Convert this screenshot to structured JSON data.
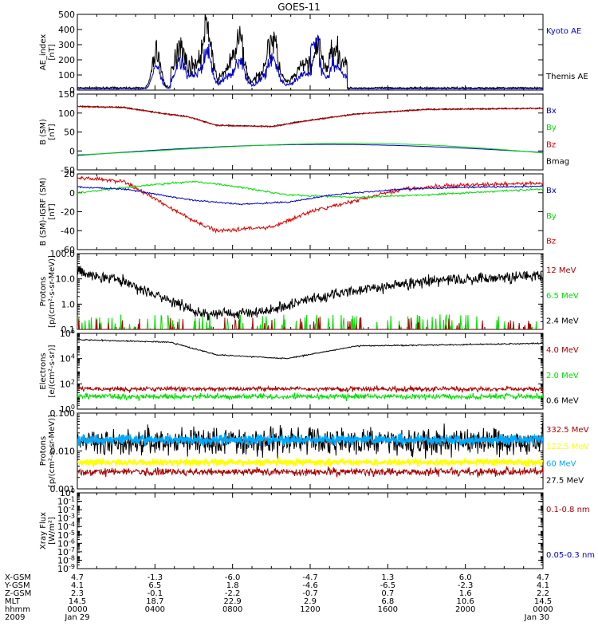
{
  "title": "GOES-11",
  "colors": {
    "black": "#000000",
    "blue": "#0000cc",
    "green": "#00dd00",
    "red": "#dd0000",
    "darkred": "#aa0000",
    "yellow": "#ffff00",
    "cyan": "#00aaff"
  },
  "chart_data": [
    {
      "type": "line",
      "panel": "ae",
      "ylabel": [
        "AE_index",
        "[nT]"
      ],
      "ylim": [
        0,
        500
      ],
      "yticks": [
        "0",
        "100",
        "200",
        "300",
        "400",
        "500"
      ],
      "legend": [
        {
          "label": "Kyoto AE",
          "color": "#0000cc"
        },
        {
          "label": "Themis AE",
          "color": "#000000"
        }
      ]
    },
    {
      "type": "line",
      "panel": "bsm",
      "ylabel": [
        "B (SM)",
        "[nT]"
      ],
      "ylim": [
        -50,
        150
      ],
      "yticks": [
        "-50",
        "0",
        "50",
        "100",
        "150"
      ],
      "legend": [
        {
          "label": "Bx",
          "color": "#0000cc"
        },
        {
          "label": "By",
          "color": "#00dd00"
        },
        {
          "label": "Bz",
          "color": "#dd0000"
        },
        {
          "label": "Bmag",
          "color": "#000000"
        }
      ]
    },
    {
      "type": "line",
      "panel": "bdiff",
      "ylabel": [
        "B (SM)-IGRF (SM)",
        "[nT]"
      ],
      "ylim": [
        -60,
        20
      ],
      "yticks": [
        "-60",
        "-40",
        "-20",
        "0",
        "20"
      ],
      "legend": [
        {
          "label": "Bx",
          "color": "#0000cc"
        },
        {
          "label": "By",
          "color": "#00dd00"
        },
        {
          "label": "Bz",
          "color": "#dd0000"
        }
      ]
    },
    {
      "type": "line",
      "panel": "protons1",
      "ylabel": [
        "Protons",
        "[p/(cm²-s-sr-MeV)]"
      ],
      "yscale": "log",
      "ylim": [
        0.1,
        100
      ],
      "yticks": [
        "0.1",
        "1.0",
        "10.0",
        "100.0"
      ],
      "legend": [
        {
          "label": "12 MeV",
          "color": "#aa0000"
        },
        {
          "label": "6.5 MeV",
          "color": "#00dd00"
        },
        {
          "label": "2.4 MeV",
          "color": "#000000"
        }
      ]
    },
    {
      "type": "line",
      "panel": "electrons",
      "ylabel": [
        "Electrons",
        "[e/(cm²-s-sr)]"
      ],
      "yscale": "log",
      "ylim": [
        1,
        1000000
      ],
      "yticks": [
        {
          "base": "10",
          "exp": "0"
        },
        {
          "base": "10",
          "exp": "2"
        },
        {
          "base": "10",
          "exp": "4"
        },
        {
          "base": "10",
          "exp": "6"
        }
      ],
      "legend": [
        {
          "label": "4.0 MeV",
          "color": "#aa0000"
        },
        {
          "label": "2.0 MeV",
          "color": "#00dd00"
        },
        {
          "label": "0.6 MeV",
          "color": "#000000"
        }
      ]
    },
    {
      "type": "line",
      "panel": "protons2",
      "ylabel": [
        "Protons",
        "[p/(cm²-s-sr-MeV)]"
      ],
      "yscale": "log",
      "ylim": [
        0.001,
        0.1
      ],
      "yticks": [
        "0.001",
        "0.010",
        "0.100"
      ],
      "legend": [
        {
          "label": "332.5 MeV",
          "color": "#aa0000"
        },
        {
          "label": "122.5 MeV",
          "color": "#ffff00"
        },
        {
          "label": "60 MeV",
          "color": "#00aaff"
        },
        {
          "label": "27.5 MeV",
          "color": "#000000"
        }
      ]
    },
    {
      "type": "line",
      "panel": "xray",
      "ylabel": [
        "Xray Flux",
        "[W/m²]"
      ],
      "yscale": "log",
      "ylim": [
        1e-09,
        0.001
      ],
      "yticks": [
        {
          "base": "10",
          "exp": "-9"
        },
        {
          "base": "10",
          "exp": "-8"
        },
        {
          "base": "10",
          "exp": "-7"
        },
        {
          "base": "10",
          "exp": "-6"
        },
        {
          "base": "10",
          "exp": "-5"
        },
        {
          "base": "10",
          "exp": "-4"
        },
        {
          "base": "10",
          "exp": "-3"
        },
        {
          "base": "10",
          "exp": "-2"
        },
        {
          "base": "10",
          "exp": "-1"
        },
        {
          "base": "10",
          "exp": "0"
        }
      ],
      "legend": [
        {
          "label": "0.1-0.8 nm",
          "color": "#aa0000"
        },
        {
          "label": "0.05-0.3 nm",
          "color": "#0000cc"
        }
      ]
    }
  ],
  "xaxis": {
    "rows": [
      {
        "label": "X-GSM",
        "values": [
          "4.7",
          "-1.3",
          "-6.0",
          "-4.7",
          "1.3",
          "6.0",
          "4.7"
        ]
      },
      {
        "label": "Y-GSM",
        "values": [
          "4.1",
          "6.5",
          "1.8",
          "-4.6",
          "-6.5",
          "-2.3",
          "4.1"
        ]
      },
      {
        "label": "Z-GSM",
        "values": [
          "2.3",
          "-0.1",
          "-2.2",
          "-0.7",
          "0.7",
          "1.6",
          "2.2"
        ]
      },
      {
        "label": "MLT",
        "values": [
          "14.5",
          "18.7",
          "22.9",
          "2.9",
          "6.8",
          "10.6",
          "14.5"
        ]
      },
      {
        "label": "hhmm",
        "values": [
          "0000",
          "0400",
          "0800",
          "1200",
          "1600",
          "2000",
          "0000"
        ]
      },
      {
        "label": "2009",
        "values": [
          "Jan 29",
          "",
          "",
          "",
          "",
          "",
          "Jan 30"
        ]
      }
    ]
  }
}
